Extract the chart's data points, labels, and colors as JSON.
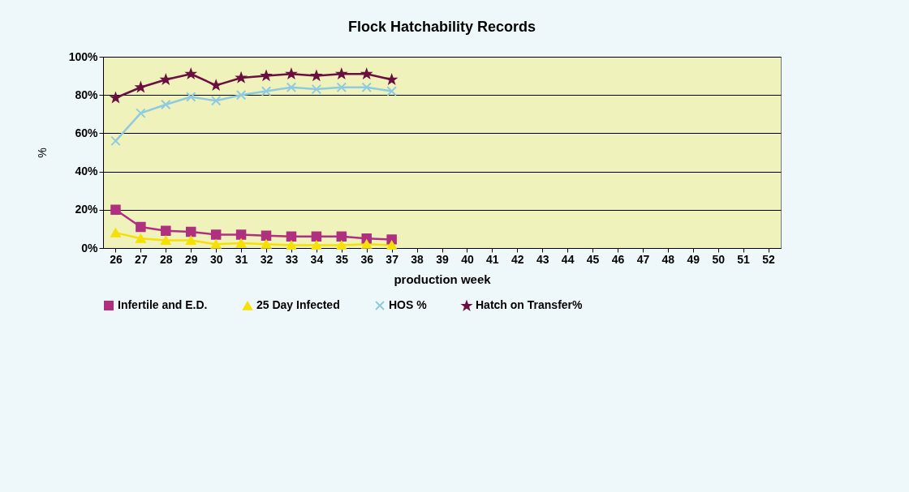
{
  "chart_data": {
    "type": "line",
    "title": "Flock Hatchability Records",
    "xlabel": "production week",
    "ylabel": "%",
    "categories": [
      "26",
      "27",
      "28",
      "29",
      "30",
      "31",
      "32",
      "33",
      "34",
      "35",
      "36",
      "37",
      "38",
      "39",
      "40",
      "41",
      "42",
      "43",
      "44",
      "45",
      "46",
      "47",
      "48",
      "49",
      "50",
      "51",
      "52"
    ],
    "ylim": [
      0,
      100
    ],
    "yticks": [
      {
        "value": 0,
        "label": "0%"
      },
      {
        "value": 20,
        "label": "20%"
      },
      {
        "value": 40,
        "label": "40%"
      },
      {
        "value": 60,
        "label": "60%"
      },
      {
        "value": 80,
        "label": "80%"
      },
      {
        "value": 100,
        "label": "100%"
      }
    ],
    "grid": "y",
    "legend": "bottom",
    "series": [
      {
        "name": "Infertile and E.D.",
        "color": "#b03080",
        "marker": "square",
        "values": [
          20,
          11,
          9,
          8.5,
          7,
          7,
          6.5,
          6,
          6,
          6,
          5,
          4.5,
          null,
          null,
          null,
          null,
          null,
          null,
          null,
          null,
          null,
          null,
          null,
          null,
          null,
          null,
          null
        ]
      },
      {
        "name": "25 Day Infected",
        "color": "#f5e000",
        "marker": "triangle",
        "values": [
          8,
          5,
          4,
          4,
          2,
          2.5,
          2,
          1.5,
          1.5,
          1.5,
          2,
          1.5,
          null,
          null,
          null,
          null,
          null,
          null,
          null,
          null,
          null,
          null,
          null,
          null,
          null,
          null,
          null
        ]
      },
      {
        "name": "HOS %",
        "color": "#8fcbe0",
        "marker": "cross",
        "values": [
          56,
          70.5,
          75,
          79,
          77,
          80,
          82,
          84,
          83,
          84,
          84,
          82,
          null,
          null,
          null,
          null,
          null,
          null,
          null,
          null,
          null,
          null,
          null,
          null,
          null,
          null,
          null
        ]
      },
      {
        "name": "Hatch on Transfer%",
        "color": "#6a1040",
        "marker": "star",
        "values": [
          78.5,
          84,
          88,
          91,
          85,
          89,
          90,
          91,
          90,
          91,
          91,
          88,
          null,
          null,
          null,
          null,
          null,
          null,
          null,
          null,
          null,
          null,
          null,
          null,
          null,
          null,
          null
        ]
      }
    ]
  }
}
